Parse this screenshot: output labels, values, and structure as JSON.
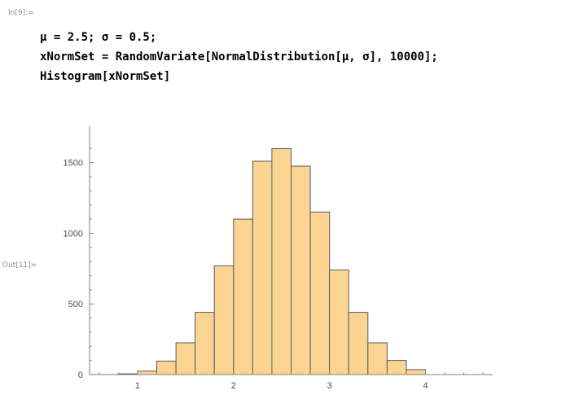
{
  "notebook": {
    "input_label": "In[9]:=",
    "output_label": "Out[11]=",
    "code_lines": [
      "μ = 2.5; σ = 0.5;",
      "xNormSet = RandomVariate[NormalDistribution[μ, σ], 10000];",
      "Histogram[xNormSet]"
    ]
  },
  "chart_data": {
    "type": "bar",
    "subtype": "histogram",
    "title": "",
    "xlabel": "",
    "ylabel": "",
    "bin_width": 0.2,
    "bins": [
      {
        "start": 0.8,
        "end": 1.0,
        "count": 5
      },
      {
        "start": 1.0,
        "end": 1.2,
        "count": 25
      },
      {
        "start": 1.2,
        "end": 1.4,
        "count": 95
      },
      {
        "start": 1.4,
        "end": 1.6,
        "count": 225
      },
      {
        "start": 1.6,
        "end": 1.8,
        "count": 440
      },
      {
        "start": 1.8,
        "end": 2.0,
        "count": 770
      },
      {
        "start": 2.0,
        "end": 2.2,
        "count": 1100
      },
      {
        "start": 2.2,
        "end": 2.4,
        "count": 1510
      },
      {
        "start": 2.4,
        "end": 2.6,
        "count": 1600
      },
      {
        "start": 2.6,
        "end": 2.8,
        "count": 1475
      },
      {
        "start": 2.8,
        "end": 3.0,
        "count": 1150
      },
      {
        "start": 3.0,
        "end": 3.2,
        "count": 740
      },
      {
        "start": 3.2,
        "end": 3.4,
        "count": 440
      },
      {
        "start": 3.4,
        "end": 3.6,
        "count": 225
      },
      {
        "start": 3.6,
        "end": 3.8,
        "count": 100
      },
      {
        "start": 3.8,
        "end": 4.0,
        "count": 35
      }
    ],
    "x_ticks": [
      "1",
      "2",
      "3",
      "4"
    ],
    "y_ticks": [
      "0",
      "500",
      "1000",
      "1500"
    ],
    "xlim": [
      0.5,
      4.7
    ],
    "ylim": [
      0,
      1700
    ],
    "bar_fill": "#fbd491",
    "bar_stroke": "#5a5a5a",
    "axis_color": "#7f7f7f",
    "grid": false
  }
}
